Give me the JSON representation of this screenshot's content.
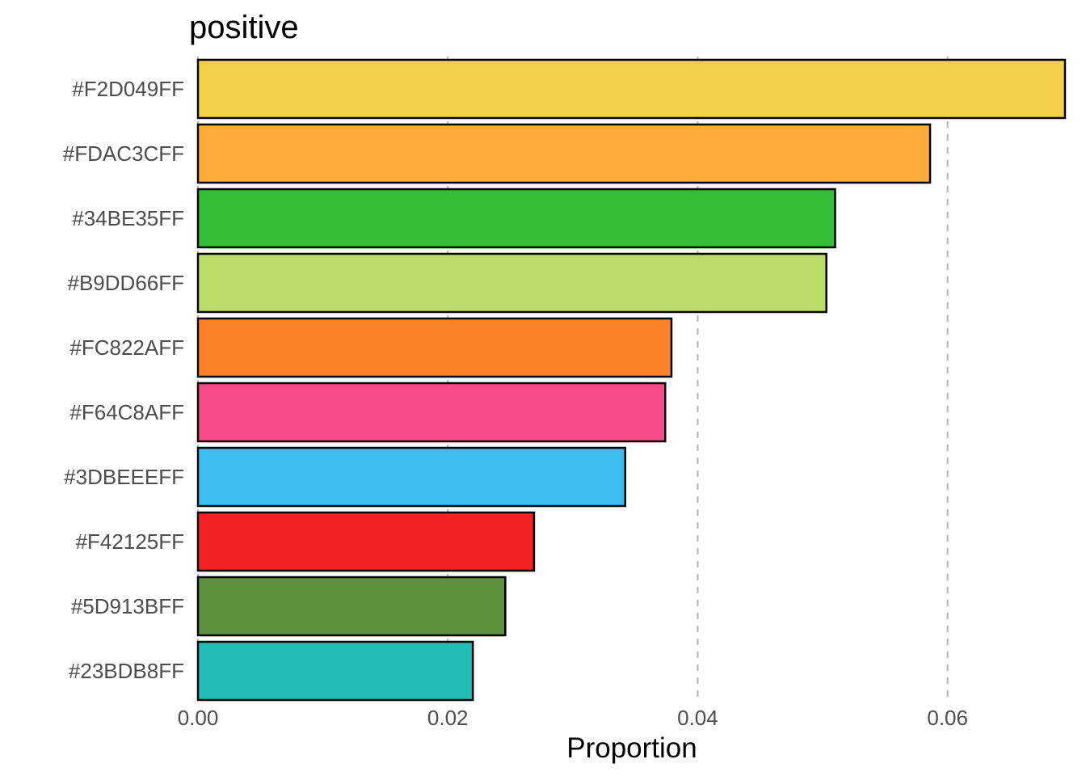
{
  "chart_data": {
    "type": "bar",
    "orientation": "horizontal",
    "title": "positive",
    "xlabel": "Proportion",
    "ylabel": "",
    "categories": [
      "#F2D049FF",
      "#FDAC3CFF",
      "#34BE35FF",
      "#B9DD66FF",
      "#FC822AFF",
      "#F64C8AFF",
      "#3DBEEEFF",
      "#F42125FF",
      "#5D913BFF",
      "#23BDB8FF"
    ],
    "values": [
      0.0694,
      0.0586,
      0.051,
      0.0503,
      0.0379,
      0.0374,
      0.0342,
      0.0269,
      0.0246,
      0.022
    ],
    "colors": [
      "#F2D049",
      "#FDAC3C",
      "#34BE35",
      "#B9DD66",
      "#FC822A",
      "#F64C8A",
      "#3DBEEE",
      "#F42125",
      "#5D913B",
      "#23BDB8"
    ],
    "xlim": [
      0,
      0.0694
    ],
    "x_ticks": [
      0,
      0.02,
      0.04,
      0.06
    ],
    "x_tick_labels": [
      "0.00",
      "0.02",
      "0.04",
      "0.06"
    ],
    "grid": "vertical dashed major gridlines",
    "legend": "none"
  }
}
